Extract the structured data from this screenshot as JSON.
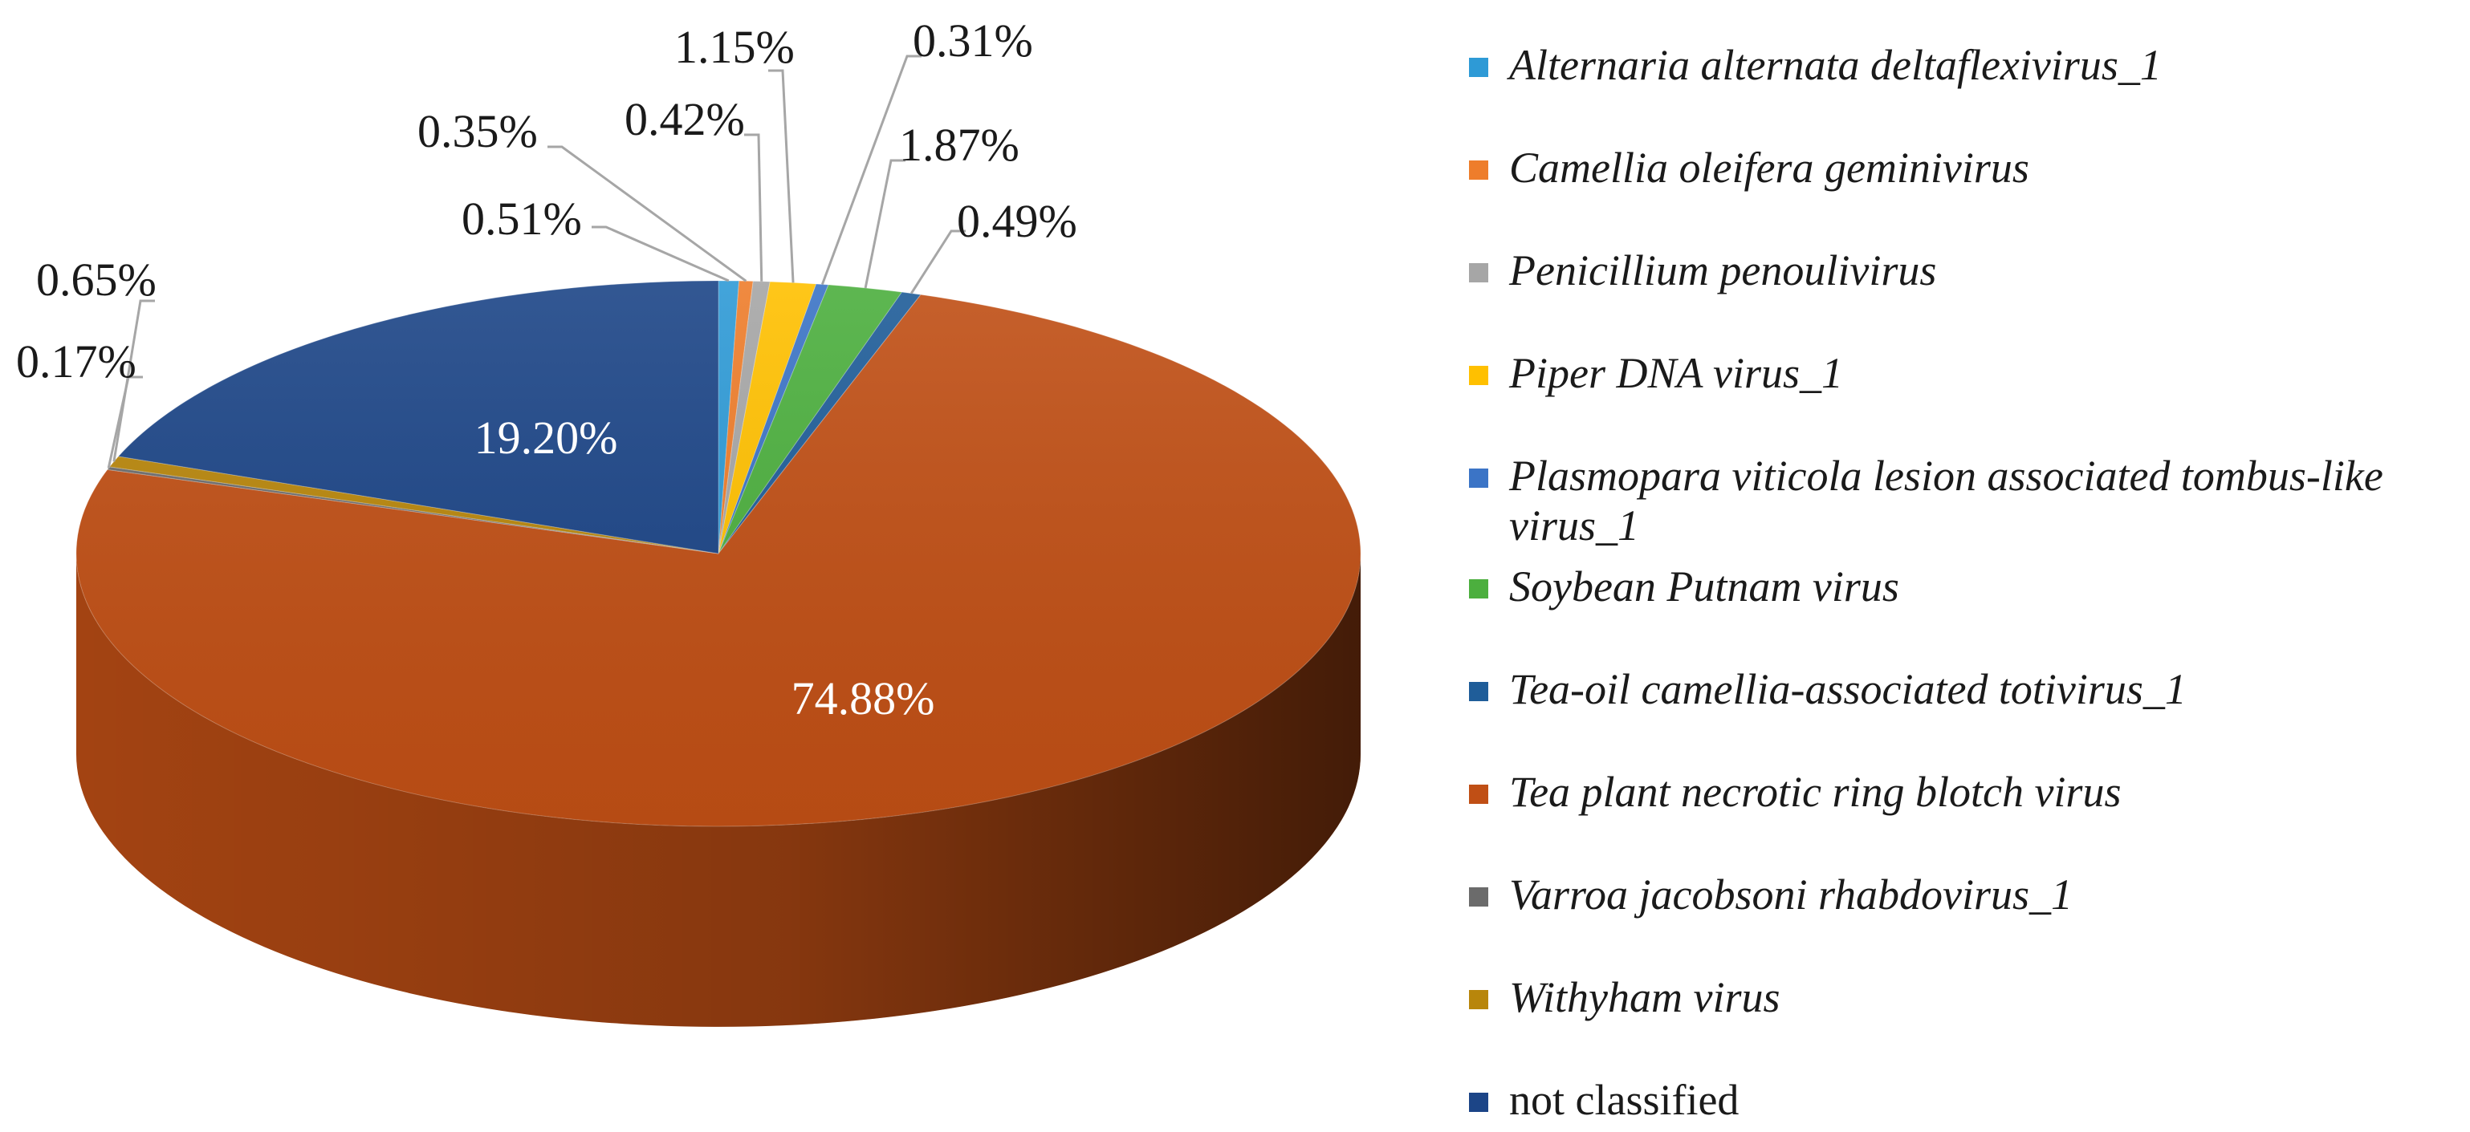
{
  "chart_data": {
    "type": "pie",
    "title": "",
    "slices": [
      {
        "label": "Alternaria alternata deltaflexivirus_1",
        "value": 0.51,
        "display": "0.51%",
        "color": "#2e9ad6",
        "italic": true
      },
      {
        "label": "Camellia oleifera geminivirus",
        "value": 0.35,
        "display": "0.35%",
        "color": "#ee7d2b",
        "italic": true
      },
      {
        "label": "Penicillium penoulivirus",
        "value": 0.42,
        "display": "0.42%",
        "color": "#a6a6a6",
        "italic": true
      },
      {
        "label": "Piper DNA virus_1",
        "value": 1.15,
        "display": "1.15%",
        "color": "#ffc000",
        "italic": true
      },
      {
        "label": "Plasmopara viticola lesion associated tombus-like virus_1",
        "value": 0.31,
        "display": "0.31%",
        "color": "#3b74c6",
        "italic": true
      },
      {
        "label": "Soybean Putnam virus",
        "value": 1.87,
        "display": "1.87%",
        "color": "#4caf3e",
        "italic": true
      },
      {
        "label": "Tea-oil camellia-associated totivirus_1",
        "value": 0.49,
        "display": "0.49%",
        "color": "#1f5d99",
        "italic": true
      },
      {
        "label": "Tea plant necrotic ring blotch virus",
        "value": 74.88,
        "display": "74.88%",
        "color": "#c04f15",
        "italic": true
      },
      {
        "label": "Varroa jacobsoni rhabdovirus_1",
        "value": 0.17,
        "display": "0.17%",
        "color": "#6b6b6b",
        "italic": true
      },
      {
        "label": "Withyham virus",
        "value": 0.65,
        "display": "0.65%",
        "color": "#b8860b",
        "italic": true
      },
      {
        "label": "not classified",
        "value": 19.2,
        "display": "19.20%",
        "color": "#1c4587",
        "italic": false
      }
    ],
    "legend_position": "right",
    "style": "3d-pie"
  }
}
